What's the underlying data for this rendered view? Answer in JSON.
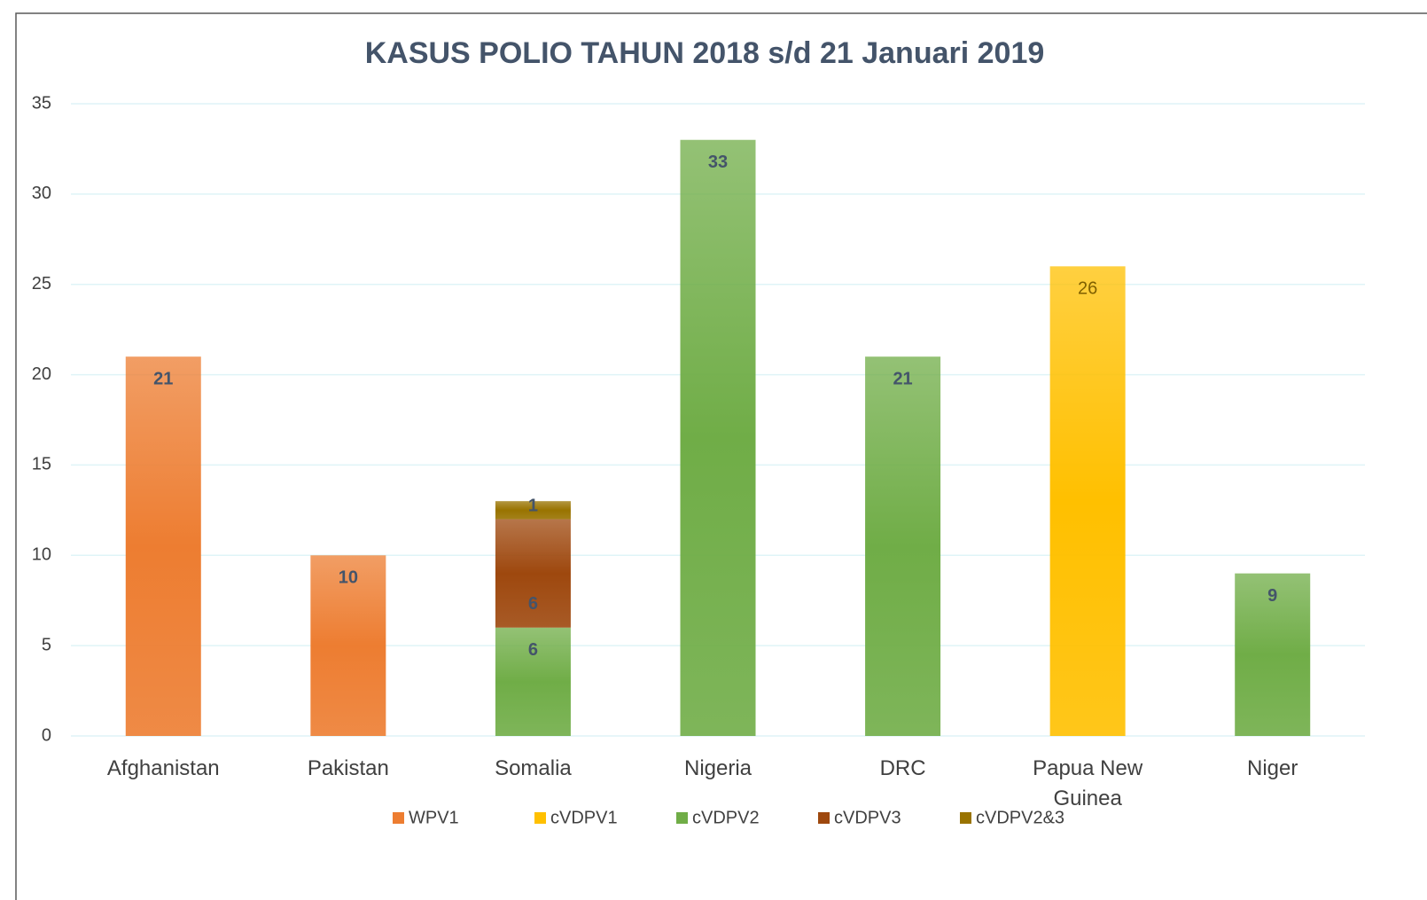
{
  "chart_data": {
    "type": "stacked_bar",
    "title": "KASUS POLIO TAHUN 2018 s/d 21 Januari 2019",
    "categories": [
      "Afghanistan",
      "Pakistan",
      "Somalia",
      "Nigeria",
      "DRC",
      "Papua New Guinea",
      "Niger"
    ],
    "series": [
      {
        "name": "WPV1",
        "color": "#ed7d31",
        "values": [
          21,
          10,
          null,
          null,
          null,
          null,
          null
        ]
      },
      {
        "name": "cVDPV1",
        "color": "#ffc000",
        "values": [
          null,
          null,
          null,
          null,
          null,
          26,
          null
        ]
      },
      {
        "name": "cVDPV2",
        "color": "#70ad47",
        "values": [
          null,
          null,
          6,
          33,
          21,
          null,
          9
        ]
      },
      {
        "name": "cVDPV3",
        "color": "#9e480e",
        "values": [
          null,
          null,
          6,
          null,
          null,
          null,
          null
        ]
      },
      {
        "name": "cVDPV2&3",
        "color": "#997300",
        "values": [
          null,
          null,
          1,
          null,
          null,
          null,
          null
        ]
      }
    ],
    "ylim": [
      0,
      35
    ],
    "yticks": [
      0,
      5,
      10,
      15,
      20,
      25,
      30,
      35
    ],
    "grid": true,
    "legend": "bottom"
  }
}
